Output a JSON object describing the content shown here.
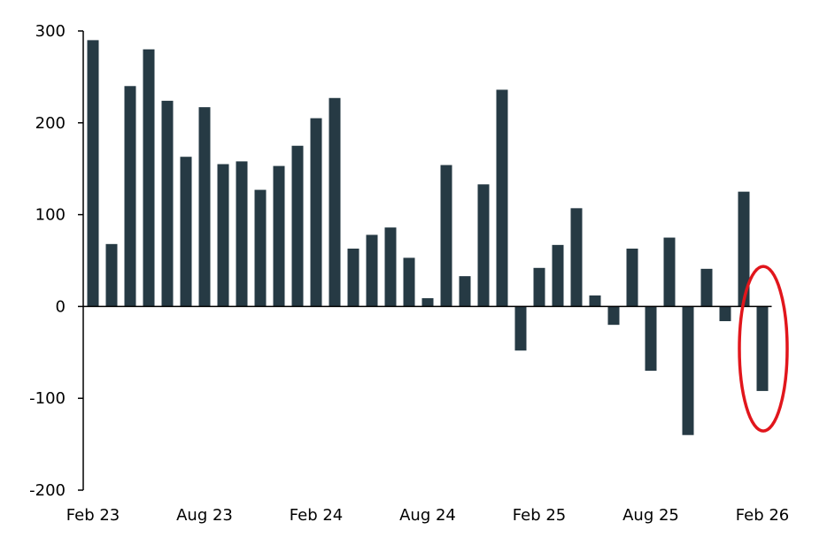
{
  "chart_data": {
    "type": "bar",
    "categories": [
      "Feb 23",
      "Mar 23",
      "Apr 23",
      "May 23",
      "Jun 23",
      "Jul 23",
      "Aug 23",
      "Sep 23",
      "Oct 23",
      "Nov 23",
      "Dec 23",
      "Jan 24",
      "Feb 24",
      "Mar 24",
      "Apr 24",
      "May 24",
      "Jun 24",
      "Jul 24",
      "Aug 24",
      "Sep 24",
      "Oct 24",
      "Nov 24",
      "Dec 24",
      "Jan 25",
      "Feb 25",
      "Mar 25",
      "Apr 25",
      "May 25",
      "Jun 25",
      "Jul 25",
      "Aug 25",
      "Sep 25",
      "Oct 25",
      "Nov 25",
      "Dec 25",
      "Jan 26",
      "Feb 26"
    ],
    "values": [
      290,
      68,
      240,
      280,
      224,
      163,
      217,
      155,
      158,
      127,
      153,
      175,
      205,
      227,
      63,
      78,
      86,
      53,
      9,
      154,
      33,
      133,
      236,
      -48,
      42,
      67,
      107,
      12,
      -20,
      63,
      -70,
      75,
      -140,
      41,
      -16,
      125,
      -92
    ],
    "x_tick_labels": [
      "Feb 23",
      "Aug 23",
      "Feb 24",
      "Aug 24",
      "Feb 25",
      "Aug 25",
      "Feb 26"
    ],
    "x_tick_indices": [
      0,
      6,
      12,
      18,
      24,
      30,
      36
    ],
    "y_ticks": [
      300,
      200,
      100,
      0,
      -100,
      -200
    ],
    "y_tick_labels": [
      "300",
      "200",
      "100",
      "0",
      "-100",
      "-200"
    ],
    "ylim": [
      -200,
      300
    ],
    "title": "",
    "xlabel": "",
    "ylabel": "",
    "grid": false,
    "legend": "none",
    "highlighted_category": "Feb 26"
  },
  "colors": {
    "bar": "#263a44",
    "highlight": "#e1161c",
    "axis": "#000000",
    "background": "#ffffff"
  }
}
